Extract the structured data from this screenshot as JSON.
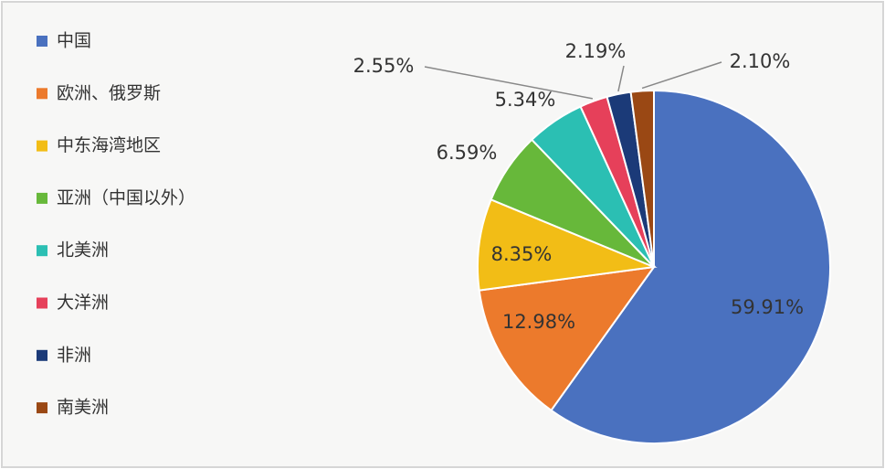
{
  "chart_data": {
    "type": "pie",
    "categories": [
      "中国",
      "欧洲、俄罗斯",
      "中东海湾地区",
      "亚洲（中国以外）",
      "北美洲",
      "大洋洲",
      "非洲",
      "南美洲"
    ],
    "values": [
      59.91,
      12.98,
      8.35,
      6.59,
      5.34,
      2.55,
      2.19,
      2.1
    ],
    "value_labels": [
      "59.91%",
      "12.98%",
      "8.35%",
      "6.59%",
      "5.34%",
      "2.55%",
      "2.19%",
      "2.10%"
    ],
    "colors": [
      "#4a71bf",
      "#ec7a2c",
      "#f2bd16",
      "#67b83a",
      "#2bbfb3",
      "#e6405a",
      "#1b3a78",
      "#9a4814"
    ],
    "legend": "left"
  }
}
